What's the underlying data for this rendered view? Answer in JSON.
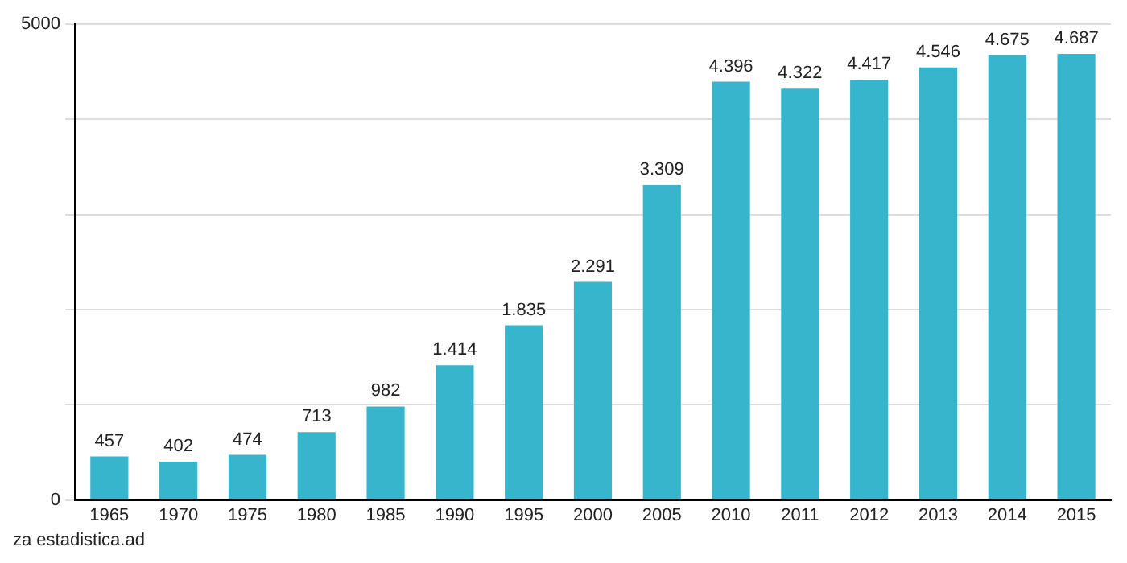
{
  "chart_data": {
    "type": "bar",
    "categories": [
      "1965",
      "1970",
      "1975",
      "1980",
      "1985",
      "1990",
      "1995",
      "2000",
      "2005",
      "2010",
      "2011",
      "2012",
      "2013",
      "2014",
      "2015"
    ],
    "values": [
      457,
      402,
      474,
      713,
      982,
      1414,
      1835,
      2291,
      3309,
      4396,
      4322,
      4417,
      4546,
      4675,
      4687
    ],
    "value_labels": [
      "457",
      "402",
      "474",
      "713",
      "982",
      "1.414",
      "1.835",
      "2.291",
      "3.309",
      "4.396",
      "4.322",
      "4.417",
      "4.546",
      "4.675",
      "4.687"
    ],
    "color": "#36b5cc",
    "ylim": [
      0,
      5000
    ],
    "yticks": [
      0,
      {
        "value": 1000,
        "label": null
      },
      {
        "value": 2000,
        "label": null
      },
      {
        "value": 3000,
        "label": null
      },
      {
        "value": 4000,
        "label": null
      },
      5000
    ],
    "grid": "y",
    "annotations": [
      "za estadistica.ad"
    ]
  }
}
